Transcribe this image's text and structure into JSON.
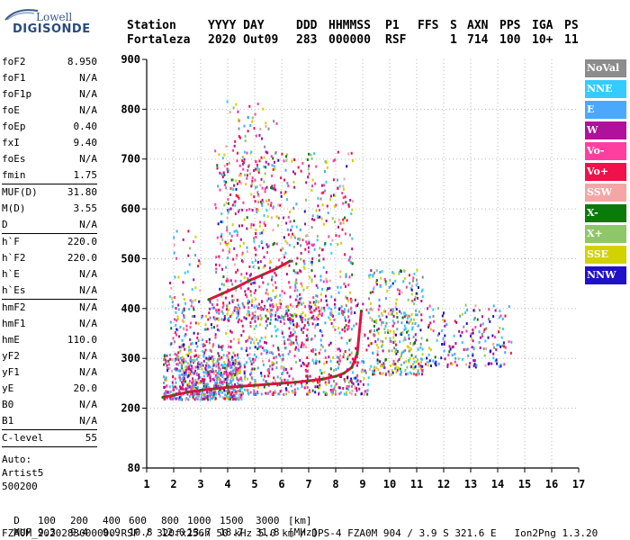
{
  "logo": {
    "brand_top": "Lowell",
    "brand_bottom": "DIGISONDE"
  },
  "header": {
    "row1": [
      "Station",
      "YYYY DAY",
      "DDD",
      "HHMMSS",
      "P1",
      "FFS",
      "S",
      "AXN",
      "PPS",
      "IGA",
      "PS"
    ],
    "row2": [
      "Fortaleza",
      "2020 Out09",
      "283",
      "000000",
      "RSF",
      "",
      "1",
      "714",
      "100",
      "10+",
      "11"
    ]
  },
  "params": {
    "group1": [
      {
        "k": "foF2",
        "v": "8.950"
      },
      {
        "k": "foF1",
        "v": "N/A"
      },
      {
        "k": "foF1p",
        "v": "N/A"
      },
      {
        "k": "foE",
        "v": "N/A"
      },
      {
        "k": "foEp",
        "v": "0.40"
      },
      {
        "k": "fxI",
        "v": "9.40"
      },
      {
        "k": "foEs",
        "v": "N/A"
      },
      {
        "k": "fmin",
        "v": "1.75"
      }
    ],
    "group2": [
      {
        "k": "MUF(D)",
        "v": "31.80"
      },
      {
        "k": "M(D)",
        "v": "3.55"
      },
      {
        "k": "D",
        "v": "N/A"
      }
    ],
    "group3": [
      {
        "k": "h`F",
        "v": "220.0"
      },
      {
        "k": "h`F2",
        "v": "220.0"
      },
      {
        "k": "h`E",
        "v": "N/A"
      },
      {
        "k": "h`Es",
        "v": "N/A"
      }
    ],
    "group4": [
      {
        "k": "hmF2",
        "v": "N/A"
      },
      {
        "k": "hmF1",
        "v": "N/A"
      },
      {
        "k": "hmE",
        "v": "110.0"
      },
      {
        "k": "yF2",
        "v": "N/A"
      },
      {
        "k": "yF1",
        "v": "N/A"
      },
      {
        "k": "yE",
        "v": "20.0"
      },
      {
        "k": "B0",
        "v": "N/A"
      },
      {
        "k": "B1",
        "v": "N/A"
      }
    ],
    "clevel": {
      "k": "C-level",
      "v": "55"
    },
    "auto": [
      "Auto:",
      "Artist5",
      "500200"
    ]
  },
  "legend": [
    {
      "label": "NoVal",
      "color": "#8c8c8c"
    },
    {
      "label": "NNE",
      "color": "#33ccff"
    },
    {
      "label": "E",
      "color": "#4aa8ff"
    },
    {
      "label": "W",
      "color": "#b0109c"
    },
    {
      "label": "Vo-",
      "color": "#ff3fa0"
    },
    {
      "label": "Vo+",
      "color": "#f0104a"
    },
    {
      "label": "SSW",
      "color": "#f4a6a6"
    },
    {
      "label": "X-",
      "color": "#0a7a0a"
    },
    {
      "label": "X+",
      "color": "#8ec66a"
    },
    {
      "label": "SSE",
      "color": "#d2d200"
    },
    {
      "label": "NNW",
      "color": "#2010c8"
    }
  ],
  "chart_data": {
    "type": "scatter",
    "xlim": [
      1,
      17
    ],
    "ylim": [
      80,
      900
    ],
    "x_ticks": [
      1,
      2,
      3,
      4,
      5,
      6,
      7,
      8,
      9,
      10,
      11,
      12,
      13,
      14,
      15,
      16,
      17
    ],
    "y_ticks": [
      80,
      200,
      300,
      400,
      500,
      600,
      700,
      800,
      900
    ],
    "grid": true,
    "trace": {
      "freq": [
        1.6,
        2.0,
        2.5,
        3.0,
        3.5,
        4.0,
        4.5,
        5.0,
        5.5,
        6.0,
        6.5,
        7.0,
        7.5,
        8.0,
        8.3,
        8.6,
        8.8,
        8.95
      ],
      "height": [
        222,
        226,
        232,
        236,
        239,
        242,
        244,
        246,
        248,
        250,
        252,
        255,
        258,
        264,
        270,
        282,
        310,
        395
      ]
    },
    "upper_trace": {
      "freq": [
        3.3,
        3.8,
        4.3,
        4.8,
        5.3,
        5.8,
        6.3
      ],
      "height": [
        418,
        430,
        442,
        456,
        468,
        480,
        495
      ]
    }
  },
  "bottom": {
    "d_label": "D",
    "d_values": [
      "100",
      "200",
      "400",
      "600",
      "800",
      "1000",
      "1500",
      "3000",
      "[km]"
    ],
    "muf_label": "MUF",
    "muf_values": [
      "9.3",
      "9.4",
      "9.9",
      "10.8",
      "12.0",
      "13.7",
      "18.7",
      "31.8",
      "[MHz]"
    ],
    "footer": "FZA0M_2020283000000.RSF / 320fx256h 50 kHz 5.0 km / DPS-4 FZA0M 904 / 3.9 S 321.6 E   Ion2Png 1.3.20"
  }
}
